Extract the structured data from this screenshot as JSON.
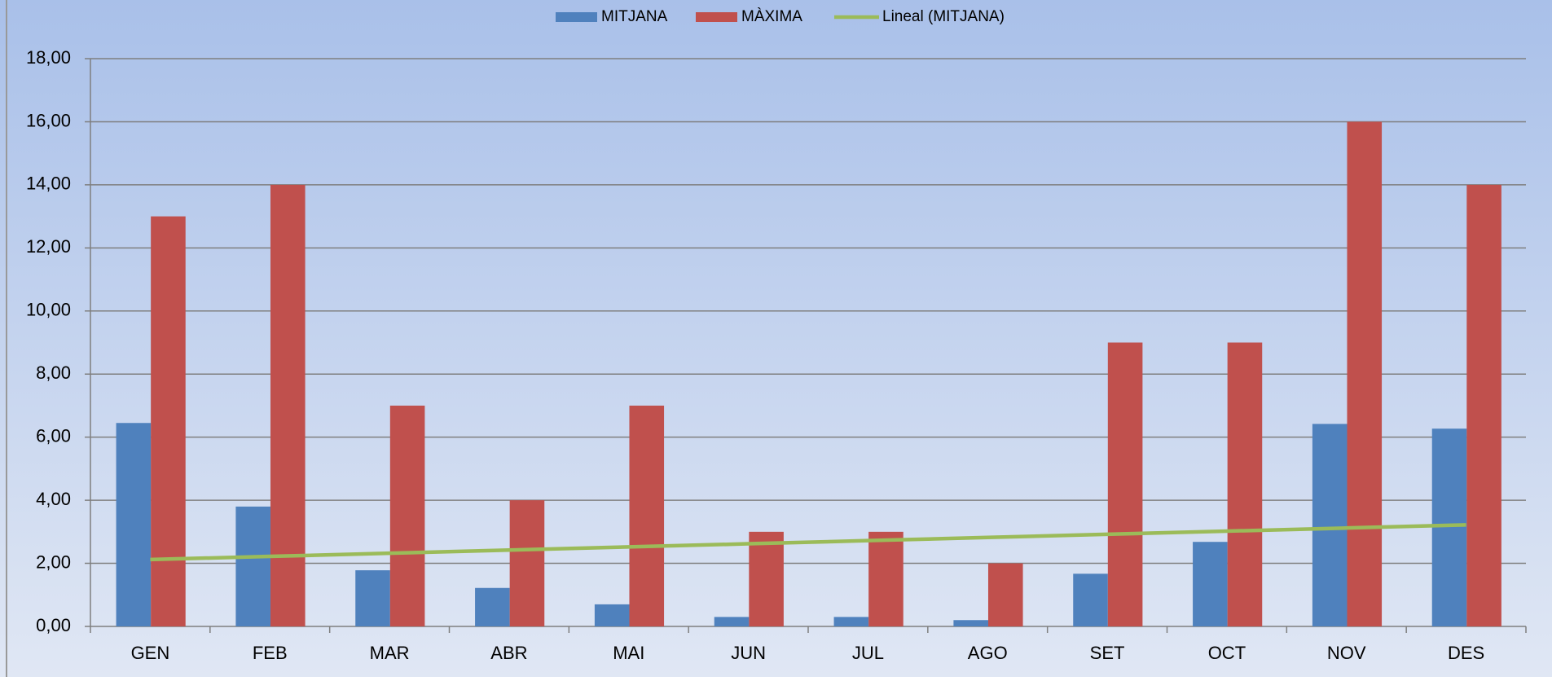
{
  "chart_data": {
    "type": "bar",
    "categories": [
      "GEN",
      "FEB",
      "MAR",
      "ABR",
      "MAI",
      "JUN",
      "JUL",
      "AGO",
      "SET",
      "OCT",
      "NOV",
      "DES"
    ],
    "series": [
      {
        "name": "MITJANA",
        "color": "#4f81bd",
        "values": [
          6.45,
          3.8,
          1.78,
          1.22,
          0.7,
          0.3,
          0.3,
          0.2,
          1.67,
          2.68,
          6.42,
          6.27
        ]
      },
      {
        "name": "MÀXIMA",
        "color": "#c0504d",
        "values": [
          13,
          14,
          7,
          4,
          7,
          3,
          3,
          2,
          9,
          9,
          16,
          14
        ]
      },
      {
        "name": "Lineal (MITJANA)",
        "color": "#9bbb59",
        "type": "line",
        "values": [
          2.12,
          2.22,
          2.32,
          2.42,
          2.52,
          2.62,
          2.72,
          2.82,
          2.92,
          3.02,
          3.12,
          3.22
        ]
      }
    ],
    "ylim": [
      0,
      18
    ],
    "yticks": [
      {
        "value": 0,
        "label": "0,00"
      },
      {
        "value": 2,
        "label": "2,00"
      },
      {
        "value": 4,
        "label": "4,00"
      },
      {
        "value": 6,
        "label": "6,00"
      },
      {
        "value": 8,
        "label": "8,00"
      },
      {
        "value": 10,
        "label": "10,00"
      },
      {
        "value": 12,
        "label": "12,00"
      },
      {
        "value": 14,
        "label": "14,00"
      },
      {
        "value": 16,
        "label": "16,00"
      },
      {
        "value": 18,
        "label": "18,00"
      }
    ],
    "grid": true,
    "legend": "top"
  }
}
